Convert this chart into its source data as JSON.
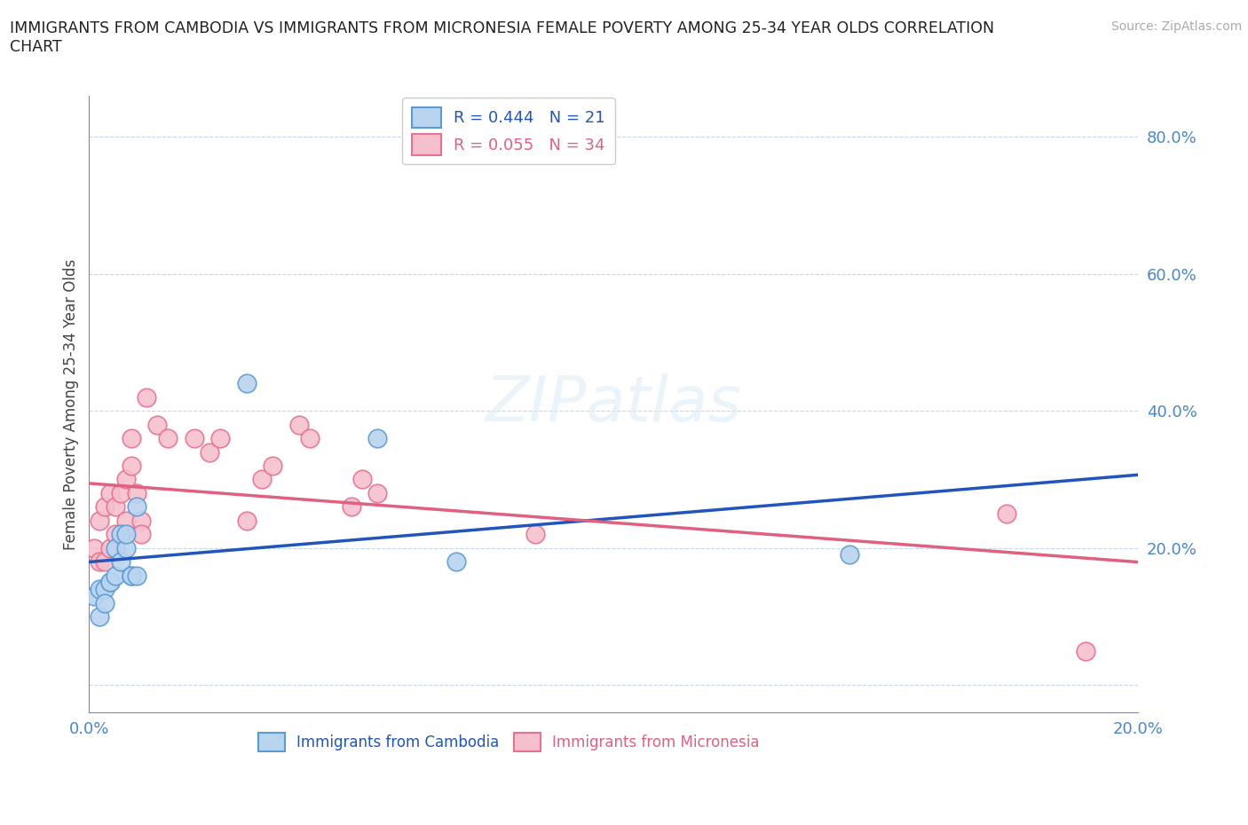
{
  "title": "IMMIGRANTS FROM CAMBODIA VS IMMIGRANTS FROM MICRONESIA FEMALE POVERTY AMONG 25-34 YEAR OLDS CORRELATION\nCHART",
  "source_text": "Source: ZipAtlas.com",
  "ylabel": "Female Poverty Among 25-34 Year Olds",
  "xlim": [
    0.0,
    0.2
  ],
  "ylim": [
    -0.04,
    0.86
  ],
  "xticks": [
    0.0,
    0.05,
    0.1,
    0.15,
    0.2
  ],
  "xtick_labels": [
    "0.0%",
    "",
    "",
    "",
    "20.0%"
  ],
  "yticks": [
    0.0,
    0.2,
    0.4,
    0.6,
    0.8
  ],
  "ytick_labels": [
    "",
    "20.0%",
    "40.0%",
    "60.0%",
    "80.0%"
  ],
  "cambodia_R": 0.444,
  "cambodia_N": 21,
  "micronesia_R": 0.055,
  "micronesia_N": 34,
  "cambodia_color": "#b8d4ee",
  "cambodia_edge_color": "#5b9bd5",
  "micronesia_color": "#f5c0ce",
  "micronesia_edge_color": "#e87090",
  "cambodia_line_color": "#2255bb",
  "micronesia_line_color": "#e06080",
  "watermark": "ZIPatlas",
  "cambodia_x": [
    0.001,
    0.002,
    0.002,
    0.003,
    0.003,
    0.004,
    0.004,
    0.005,
    0.005,
    0.006,
    0.006,
    0.007,
    0.007,
    0.008,
    0.008,
    0.009,
    0.009,
    0.03,
    0.055,
    0.07,
    0.145
  ],
  "cambodia_y": [
    0.13,
    0.1,
    0.14,
    0.14,
    0.12,
    0.15,
    0.15,
    0.16,
    0.2,
    0.18,
    0.22,
    0.2,
    0.22,
    0.16,
    0.16,
    0.26,
    0.16,
    0.44,
    0.36,
    0.18,
    0.19
  ],
  "micronesia_x": [
    0.001,
    0.002,
    0.002,
    0.003,
    0.003,
    0.004,
    0.004,
    0.005,
    0.005,
    0.006,
    0.007,
    0.007,
    0.008,
    0.008,
    0.009,
    0.01,
    0.01,
    0.011,
    0.013,
    0.015,
    0.02,
    0.023,
    0.025,
    0.03,
    0.033,
    0.035,
    0.04,
    0.042,
    0.05,
    0.052,
    0.055,
    0.085,
    0.175,
    0.19
  ],
  "micronesia_y": [
    0.2,
    0.18,
    0.24,
    0.18,
    0.26,
    0.2,
    0.28,
    0.22,
    0.26,
    0.28,
    0.3,
    0.24,
    0.32,
    0.36,
    0.28,
    0.24,
    0.22,
    0.42,
    0.38,
    0.36,
    0.36,
    0.34,
    0.36,
    0.24,
    0.3,
    0.32,
    0.38,
    0.36,
    0.26,
    0.3,
    0.28,
    0.22,
    0.25,
    0.05
  ]
}
